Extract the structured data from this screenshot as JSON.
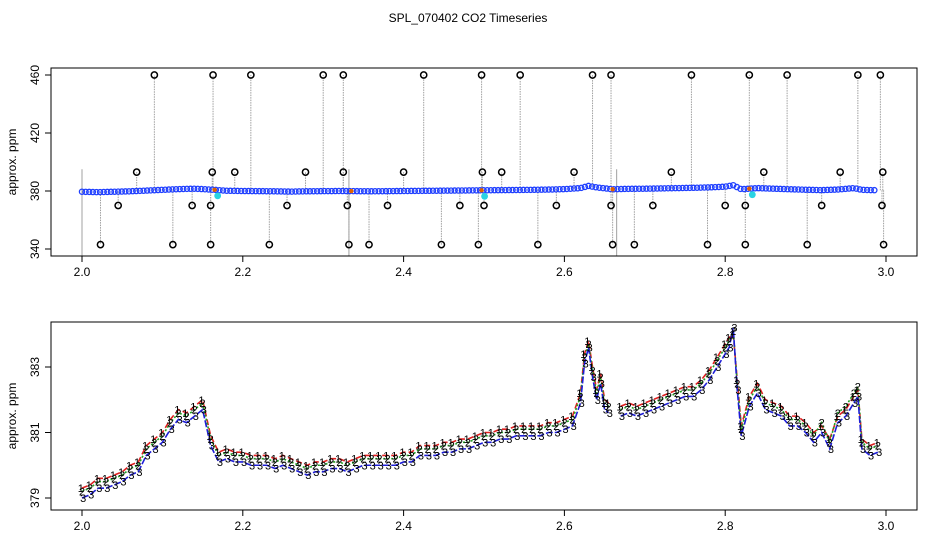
{
  "title": "SPL_070402  CO2 Timeseries",
  "colors": {
    "frame": "#000000",
    "raw_line": "#a0a0a0",
    "outlier": "#000000",
    "flag": "#e06000",
    "series_fill_1": "#1f3fff",
    "series_fill_2": "#2aa02a",
    "cyan": "#29d3e3",
    "s1": "#e02020",
    "s2": "#20a020",
    "s3": "#1d1dd8"
  },
  "chart_data": [
    {
      "type": "scatter",
      "name": "raw-panel",
      "xlabel": "",
      "ylabel": "approx. ppm",
      "xlim": [
        2.0,
        3.0
      ],
      "ylim": [
        340,
        460
      ],
      "xticks": [
        "2.0",
        "2.2",
        "2.4",
        "2.6",
        "2.8",
        "3.0"
      ],
      "yticks": [
        "340",
        "380",
        "420",
        "460"
      ],
      "baseline": [
        [
          2.0,
          379.5
        ],
        [
          2.02,
          379.2
        ],
        [
          2.04,
          379.5
        ],
        [
          2.06,
          379.8
        ],
        [
          2.08,
          380.3
        ],
        [
          2.1,
          380.8
        ],
        [
          2.12,
          381.3
        ],
        [
          2.14,
          381.6
        ],
        [
          2.16,
          381.0
        ],
        [
          2.18,
          380.2
        ],
        [
          2.2,
          380.0
        ],
        [
          2.22,
          379.9
        ],
        [
          2.24,
          379.8
        ],
        [
          2.26,
          379.6
        ],
        [
          2.28,
          379.8
        ],
        [
          2.3,
          379.9
        ],
        [
          2.32,
          380.0
        ],
        [
          2.34,
          379.9
        ],
        [
          2.36,
          379.8
        ],
        [
          2.38,
          379.9
        ],
        [
          2.4,
          380.0
        ],
        [
          2.42,
          380.1
        ],
        [
          2.44,
          380.2
        ],
        [
          2.46,
          380.3
        ],
        [
          2.48,
          380.4
        ],
        [
          2.5,
          380.5
        ],
        [
          2.52,
          380.6
        ],
        [
          2.54,
          380.7
        ],
        [
          2.56,
          380.8
        ],
        [
          2.58,
          381.0
        ],
        [
          2.6,
          381.3
        ],
        [
          2.62,
          382.0
        ],
        [
          2.63,
          383.5
        ],
        [
          2.64,
          382.5
        ],
        [
          2.66,
          381.2
        ],
        [
          2.68,
          381.5
        ],
        [
          2.7,
          381.6
        ],
        [
          2.72,
          381.8
        ],
        [
          2.74,
          382.0
        ],
        [
          2.76,
          382.2
        ],
        [
          2.78,
          382.5
        ],
        [
          2.8,
          383.0
        ],
        [
          2.81,
          384.0
        ],
        [
          2.82,
          381.2
        ],
        [
          2.84,
          382.0
        ],
        [
          2.86,
          381.6
        ],
        [
          2.88,
          381.2
        ],
        [
          2.9,
          380.9
        ],
        [
          2.92,
          380.6
        ],
        [
          2.94,
          381.0
        ],
        [
          2.96,
          382.0
        ],
        [
          2.97,
          380.8
        ],
        [
          2.99,
          380.5
        ]
      ],
      "outliers_high": [
        2.09,
        2.163,
        2.21,
        2.3,
        2.325,
        2.425,
        2.497,
        2.545,
        2.635,
        2.658,
        2.758,
        2.83,
        2.877,
        2.965,
        2.993
      ],
      "outliers_low": [
        2.023,
        2.113,
        2.16,
        2.233,
        2.332,
        2.357,
        2.447,
        2.493,
        2.567,
        2.66,
        2.687,
        2.778,
        2.825,
        2.902,
        2.997
      ],
      "outliers_mid_high": [
        2.068,
        2.162,
        2.19,
        2.278,
        2.325,
        2.4,
        2.498,
        2.522,
        2.612,
        2.733,
        2.848,
        2.943,
        2.996
      ],
      "outliers_mid_low": [
        2.045,
        2.137,
        2.16,
        2.255,
        2.33,
        2.38,
        2.47,
        2.5,
        2.59,
        2.658,
        2.71,
        2.8,
        2.825,
        2.92,
        2.995
      ],
      "cyan_points": [
        2.165,
        2.497,
        2.83
      ],
      "flag_points": [
        2.165,
        2.335,
        2.497,
        2.66,
        2.83
      ]
    },
    {
      "type": "line",
      "name": "detail-panel",
      "xlabel": "",
      "ylabel": "approx. ppm",
      "xlim": [
        2.0,
        3.0
      ],
      "ylim": [
        378.8,
        384.4
      ],
      "xticks": [
        "2.0",
        "2.2",
        "2.4",
        "2.6",
        "2.8",
        "3.0"
      ],
      "yticks": [
        "379",
        "381",
        "383"
      ],
      "series_labels": [
        "1",
        "2",
        "3"
      ],
      "x": [
        2.0,
        2.01,
        2.02,
        2.03,
        2.04,
        2.05,
        2.06,
        2.07,
        2.08,
        2.09,
        2.1,
        2.11,
        2.12,
        2.13,
        2.14,
        2.15,
        2.16,
        2.17,
        2.18,
        2.19,
        2.2,
        2.21,
        2.22,
        2.23,
        2.24,
        2.25,
        2.26,
        2.27,
        2.28,
        2.29,
        2.3,
        2.31,
        2.32,
        2.33,
        2.34,
        2.35,
        2.36,
        2.37,
        2.38,
        2.39,
        2.4,
        2.41,
        2.42,
        2.43,
        2.44,
        2.45,
        2.46,
        2.47,
        2.48,
        2.49,
        2.5,
        2.51,
        2.52,
        2.53,
        2.54,
        2.55,
        2.56,
        2.57,
        2.58,
        2.59,
        2.6,
        2.61,
        2.62,
        2.625,
        2.63,
        2.635,
        2.64,
        2.645,
        2.65,
        2.655,
        2.66,
        2.67,
        2.68,
        2.69,
        2.7,
        2.71,
        2.72,
        2.73,
        2.74,
        2.75,
        2.76,
        2.77,
        2.78,
        2.79,
        2.8,
        2.805,
        2.81,
        2.815,
        2.82,
        2.83,
        2.84,
        2.85,
        2.86,
        2.87,
        2.88,
        2.89,
        2.9,
        2.91,
        2.92,
        2.93,
        2.94,
        2.95,
        2.96,
        2.965,
        2.97,
        2.98,
        2.99
      ],
      "series": [
        {
          "name": "1",
          "values": [
            379.3,
            379.4,
            379.6,
            379.6,
            379.7,
            379.8,
            380.0,
            380.1,
            380.6,
            380.8,
            381.0,
            381.4,
            381.7,
            381.6,
            381.8,
            382.0,
            380.9,
            380.4,
            380.5,
            380.4,
            380.4,
            380.3,
            380.3,
            380.3,
            380.2,
            380.3,
            380.2,
            380.1,
            380.0,
            380.1,
            380.1,
            380.2,
            380.2,
            380.1,
            380.2,
            380.3,
            380.3,
            380.3,
            380.3,
            380.3,
            380.4,
            380.4,
            380.6,
            380.6,
            380.6,
            380.7,
            380.7,
            380.8,
            380.8,
            380.9,
            381.0,
            381.0,
            381.1,
            381.1,
            381.2,
            381.2,
            381.2,
            381.2,
            381.3,
            381.3,
            381.4,
            381.5,
            382.2,
            383.4,
            383.8,
            383.0,
            382.3,
            382.8,
            382.0,
            381.9,
            null,
            381.8,
            381.9,
            381.8,
            381.9,
            382.0,
            382.1,
            382.2,
            382.3,
            382.4,
            382.4,
            382.6,
            382.9,
            383.3,
            383.7,
            383.9,
            384.0,
            382.6,
            381.2,
            382.1,
            382.5,
            382.0,
            381.9,
            381.8,
            381.5,
            381.5,
            381.3,
            381.0,
            381.2,
            380.8,
            381.5,
            381.7,
            382.1,
            382.3,
            380.8,
            380.6,
            380.7
          ]
        },
        {
          "name": "2",
          "values": [
            379.2,
            379.3,
            379.5,
            379.5,
            379.6,
            379.7,
            379.9,
            380.0,
            380.5,
            380.7,
            380.9,
            381.3,
            381.6,
            381.5,
            381.7,
            381.9,
            380.8,
            380.3,
            380.4,
            380.3,
            380.3,
            380.2,
            380.2,
            380.2,
            380.1,
            380.2,
            380.1,
            380.0,
            379.9,
            380.0,
            380.0,
            380.1,
            380.1,
            380.0,
            380.1,
            380.2,
            380.2,
            380.2,
            380.2,
            380.2,
            380.3,
            380.3,
            380.5,
            380.5,
            380.5,
            380.6,
            380.6,
            380.7,
            380.7,
            380.8,
            380.9,
            380.9,
            381.0,
            381.0,
            381.1,
            381.1,
            381.1,
            381.1,
            381.2,
            381.2,
            381.3,
            381.4,
            382.1,
            383.3,
            383.7,
            382.9,
            382.2,
            382.7,
            381.9,
            381.8,
            null,
            381.7,
            381.8,
            381.7,
            381.8,
            381.9,
            382.0,
            382.1,
            382.2,
            382.3,
            382.3,
            382.5,
            382.8,
            383.2,
            383.6,
            383.8,
            384.1,
            382.5,
            381.1,
            382.0,
            382.4,
            381.9,
            381.8,
            381.7,
            381.4,
            381.4,
            381.2,
            380.9,
            381.3,
            380.7,
            381.6,
            381.8,
            382.2,
            382.4,
            380.7,
            380.5,
            380.6
          ]
        },
        {
          "name": "3",
          "values": [
            379.0,
            379.1,
            379.3,
            379.3,
            379.4,
            379.5,
            379.7,
            379.8,
            380.3,
            380.5,
            380.7,
            381.1,
            381.4,
            381.3,
            381.5,
            381.7,
            380.6,
            380.1,
            380.2,
            380.1,
            380.1,
            380.0,
            380.0,
            380.0,
            379.9,
            380.0,
            379.9,
            379.8,
            379.7,
            379.8,
            379.8,
            379.9,
            379.9,
            379.8,
            379.9,
            380.0,
            380.0,
            380.0,
            380.0,
            380.0,
            380.1,
            380.1,
            380.3,
            380.3,
            380.3,
            380.4,
            380.4,
            380.5,
            380.5,
            380.6,
            380.7,
            380.7,
            380.8,
            380.8,
            380.9,
            380.9,
            380.9,
            380.9,
            381.0,
            381.0,
            381.1,
            381.2,
            381.9,
            383.1,
            383.6,
            382.7,
            382.0,
            382.5,
            381.7,
            381.6,
            null,
            381.5,
            381.6,
            381.5,
            381.6,
            381.7,
            381.8,
            381.9,
            382.0,
            382.1,
            382.1,
            382.3,
            382.6,
            383.0,
            383.4,
            383.6,
            384.2,
            382.3,
            380.9,
            381.8,
            382.2,
            381.7,
            381.6,
            381.5,
            381.2,
            381.2,
            381.0,
            380.7,
            381.0,
            380.5,
            381.3,
            381.5,
            381.9,
            382.1,
            380.5,
            380.3,
            380.4
          ]
        }
      ]
    }
  ]
}
